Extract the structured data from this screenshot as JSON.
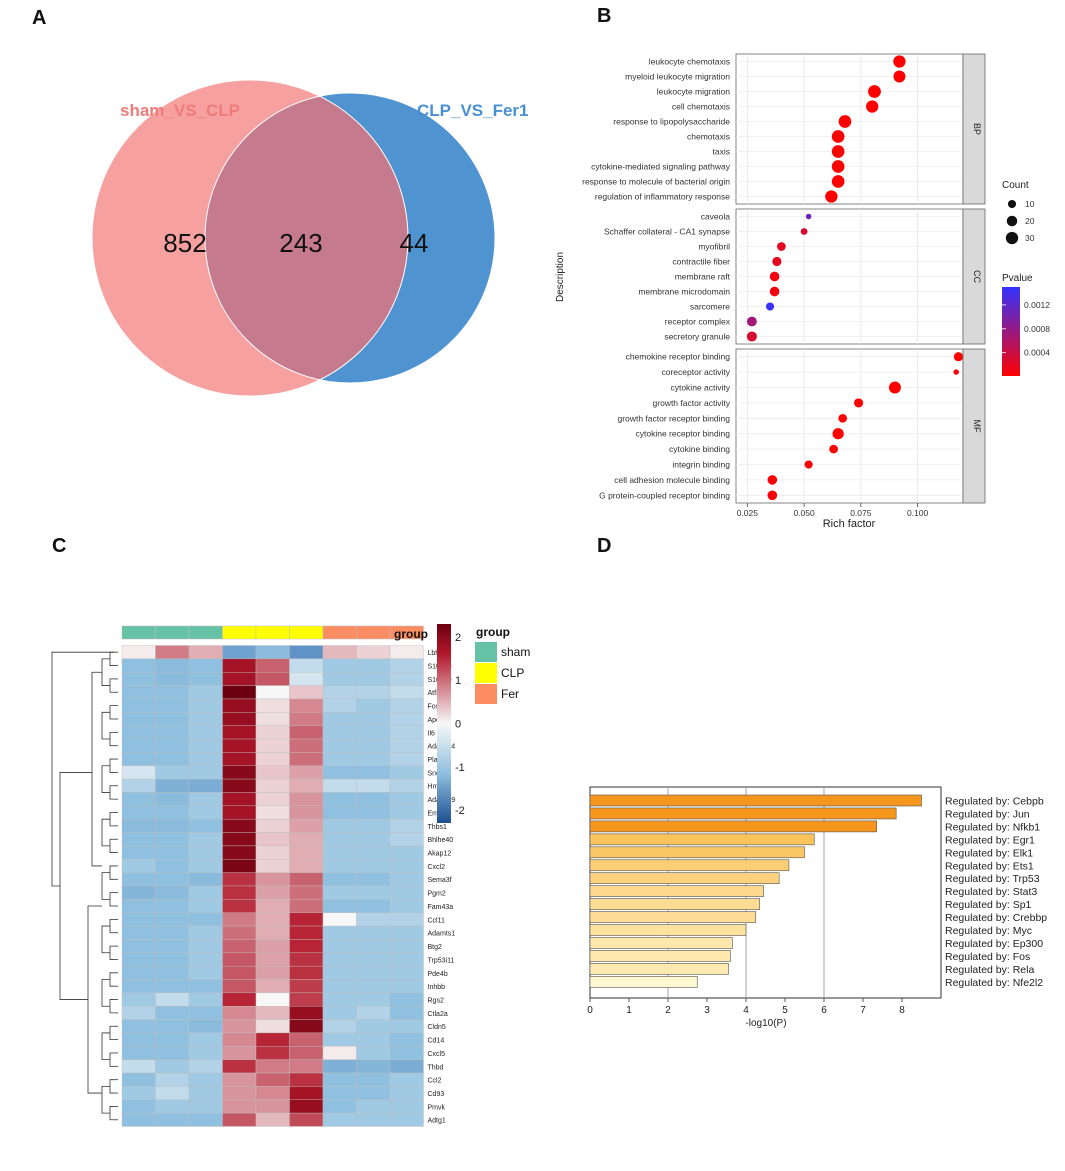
{
  "panels": {
    "a": "A",
    "b": "B",
    "c": "C",
    "d": "D"
  },
  "chart_data": [
    {
      "type": "venn",
      "panel": "A",
      "sets": [
        {
          "name": "sham_VS_CLP",
          "color": "#f08080",
          "fill": "#f7a0a0"
        },
        {
          "name": "CLP_VS_Fer1",
          "color": "#4a90d0",
          "fill": "#4f94d1"
        }
      ],
      "only_left": "852",
      "intersection": "243",
      "only_right": "44"
    },
    {
      "type": "scatter",
      "panel": "B",
      "ylabel": "Description",
      "xlabel": "Rich factor",
      "xlim": [
        0.02,
        0.12
      ],
      "xticks": [
        "0.025",
        "0.050",
        "0.075",
        "0.100"
      ],
      "xtick_values": [
        0.025,
        0.05,
        0.075,
        0.1
      ],
      "facets": [
        {
          "name": "BP",
          "terms": [
            {
              "label": "leukocyte chemotaxis",
              "rich": 0.092,
              "count": 30,
              "p": 1e-05
            },
            {
              "label": "myeloid leukocyte migration",
              "rich": 0.092,
              "count": 28,
              "p": 1e-05
            },
            {
              "label": "leukocyte migration",
              "rich": 0.081,
              "count": 33,
              "p": 1e-05
            },
            {
              "label": "cell chemotaxis",
              "rich": 0.08,
              "count": 30,
              "p": 1e-05
            },
            {
              "label": "response to lipopolysaccharide",
              "rich": 0.068,
              "count": 32,
              "p": 1e-05
            },
            {
              "label": "chemotaxis",
              "rich": 0.065,
              "count": 32,
              "p": 1e-05
            },
            {
              "label": "taxis",
              "rich": 0.065,
              "count": 32,
              "p": 1e-05
            },
            {
              "label": "cytokine-mediated signaling pathway",
              "rich": 0.065,
              "count": 32,
              "p": 1e-05
            },
            {
              "label": "response to molecule of bacterial origin",
              "rich": 0.065,
              "count": 32,
              "p": 1e-05
            },
            {
              "label": "regulation of inflammatory response",
              "rich": 0.062,
              "count": 30,
              "p": 1e-05
            }
          ]
        },
        {
          "name": "CC",
          "terms": [
            {
              "label": "caveola",
              "rich": 0.052,
              "count": 3,
              "p": 0.0011
            },
            {
              "label": "Schaffer collateral - CA1 synapse",
              "rich": 0.05,
              "count": 6,
              "p": 0.0003
            },
            {
              "label": "myofibril",
              "rich": 0.04,
              "count": 12,
              "p": 0.0002
            },
            {
              "label": "contractile fiber",
              "rich": 0.038,
              "count": 14,
              "p": 0.0002
            },
            {
              "label": "membrane raft",
              "rich": 0.037,
              "count": 16,
              "p": 0.0001
            },
            {
              "label": "membrane microdomain",
              "rich": 0.037,
              "count": 16,
              "p": 0.0001
            },
            {
              "label": "sarcomere",
              "rich": 0.035,
              "count": 10,
              "p": 0.00145
            },
            {
              "label": "receptor complex",
              "rich": 0.027,
              "count": 17,
              "p": 0.0007
            },
            {
              "label": "secretory granule",
              "rich": 0.027,
              "count": 18,
              "p": 0.0003
            }
          ]
        },
        {
          "name": "MF",
          "terms": [
            {
              "label": "chemokine receptor binding",
              "rich": 0.118,
              "count": 14,
              "p": 1e-05
            },
            {
              "label": "coreceptor activity",
              "rich": 0.117,
              "count": 3,
              "p": 0.0001
            },
            {
              "label": "cytokine activity",
              "rich": 0.09,
              "count": 28,
              "p": 1e-05
            },
            {
              "label": "growth factor activity",
              "rich": 0.074,
              "count": 14,
              "p": 2e-05
            },
            {
              "label": "growth factor receptor binding",
              "rich": 0.067,
              "count": 12,
              "p": 2e-05
            },
            {
              "label": "cytokine receptor binding",
              "rich": 0.065,
              "count": 24,
              "p": 1e-05
            },
            {
              "label": "cytokine binding",
              "rich": 0.063,
              "count": 12,
              "p": 3e-05
            },
            {
              "label": "integrin binding",
              "rich": 0.052,
              "count": 10,
              "p": 5e-05
            },
            {
              "label": "cell adhesion molecule binding",
              "rich": 0.036,
              "count": 16,
              "p": 5e-05
            },
            {
              "label": "G protein-coupled receptor binding",
              "rich": 0.036,
              "count": 16,
              "p": 5e-05
            }
          ]
        }
      ],
      "size_legend": {
        "title": "Count",
        "values": [
          10,
          20,
          30
        ],
        "labels": [
          "10",
          "20",
          "30"
        ]
      },
      "color_legend": {
        "title": "Pvalue",
        "min": 1e-05,
        "max": 0.0015,
        "ticks": [
          0.0012,
          0.0008,
          0.0004
        ],
        "tick_labels": [
          "0.0012",
          "0.0008",
          "0.0004"
        ],
        "low_color": "#ff0000",
        "high_color": "#3333ff"
      }
    },
    {
      "type": "heatmap",
      "panel": "C",
      "columns": [
        "sham",
        "sham",
        "sham",
        "CLP",
        "CLP",
        "CLP",
        "Fer",
        "Fer",
        "Fer"
      ],
      "group_annotation_label": "group",
      "group_legend": {
        "title": "group",
        "entries": [
          {
            "name": "sham",
            "color": "#66c2a5"
          },
          {
            "name": "CLP",
            "color": "#ffff00"
          },
          {
            "name": "Fer",
            "color": "#fc8d62"
          }
        ]
      },
      "colorbar": {
        "min": -2.3,
        "max": 2.3,
        "ticks": [
          2,
          1,
          0,
          -1,
          -2
        ],
        "tick_labels": [
          "2",
          "1",
          "0",
          "-1",
          "-2"
        ]
      },
      "rows": [
        {
          "gene": "Lbh",
          "z": [
            0.1,
            1.0,
            0.6,
            -1.2,
            -0.7,
            -1.5,
            0.5,
            0.3,
            0.1
          ]
        },
        {
          "gene": "S100a8",
          "z": [
            -0.6,
            -0.7,
            -0.6,
            1.9,
            1.2,
            -0.3,
            -0.5,
            -0.5,
            -0.4
          ]
        },
        {
          "gene": "S100a9",
          "z": [
            -0.6,
            -0.7,
            -0.6,
            1.9,
            1.3,
            -0.2,
            -0.5,
            -0.5,
            -0.4
          ]
        },
        {
          "gene": "Atf3",
          "z": [
            -0.6,
            -0.6,
            -0.5,
            2.3,
            0.0,
            0.4,
            -0.4,
            -0.4,
            -0.3
          ]
        },
        {
          "gene": "Fos",
          "z": [
            -0.6,
            -0.6,
            -0.5,
            2.0,
            0.2,
            0.9,
            -0.4,
            -0.5,
            -0.4
          ]
        },
        {
          "gene": "Apold1",
          "z": [
            -0.6,
            -0.6,
            -0.5,
            2.0,
            0.2,
            1.0,
            -0.5,
            -0.5,
            -0.4
          ]
        },
        {
          "gene": "Il6",
          "z": [
            -0.6,
            -0.6,
            -0.5,
            1.9,
            0.3,
            1.2,
            -0.5,
            -0.5,
            -0.4
          ]
        },
        {
          "gene": "Adamts4",
          "z": [
            -0.6,
            -0.6,
            -0.5,
            1.9,
            0.3,
            1.1,
            -0.5,
            -0.5,
            -0.4
          ]
        },
        {
          "gene": "Plaur",
          "z": [
            -0.6,
            -0.6,
            -0.5,
            1.9,
            0.3,
            1.1,
            -0.5,
            -0.5,
            -0.4
          ]
        },
        {
          "gene": "Srxn1",
          "z": [
            -0.2,
            -0.5,
            -0.5,
            2.1,
            0.4,
            0.7,
            -0.6,
            -0.6,
            -0.5
          ]
        },
        {
          "gene": "Hmox1",
          "z": [
            -0.4,
            -0.9,
            -1.0,
            2.1,
            0.3,
            0.6,
            -0.3,
            -0.3,
            -0.4
          ]
        },
        {
          "gene": "Adamts9",
          "z": [
            -0.6,
            -0.7,
            -0.5,
            1.9,
            0.3,
            0.8,
            -0.6,
            -0.6,
            -0.5
          ]
        },
        {
          "gene": "Emp1",
          "z": [
            -0.6,
            -0.6,
            -0.5,
            1.9,
            0.2,
            0.8,
            -0.6,
            -0.6,
            -0.5
          ]
        },
        {
          "gene": "Thbs1",
          "z": [
            -0.7,
            -0.7,
            -0.6,
            2.1,
            0.3,
            0.7,
            -0.5,
            -0.5,
            -0.4
          ]
        },
        {
          "gene": "Bhlhe40",
          "z": [
            -0.6,
            -0.6,
            -0.5,
            2.1,
            0.4,
            0.6,
            -0.5,
            -0.5,
            -0.4
          ]
        },
        {
          "gene": "Akap12",
          "z": [
            -0.6,
            -0.6,
            -0.5,
            2.1,
            0.3,
            0.6,
            -0.5,
            -0.5,
            -0.5
          ]
        },
        {
          "gene": "Cxcl2",
          "z": [
            -0.5,
            -0.6,
            -0.5,
            2.2,
            0.3,
            0.6,
            -0.5,
            -0.5,
            -0.5
          ]
        },
        {
          "gene": "Sema3f",
          "z": [
            -0.6,
            -0.6,
            -0.7,
            1.6,
            0.8,
            1.2,
            -0.6,
            -0.6,
            -0.5
          ]
        },
        {
          "gene": "Pgm2",
          "z": [
            -0.8,
            -0.7,
            -0.5,
            1.6,
            0.7,
            1.1,
            -0.5,
            -0.5,
            -0.5
          ]
        },
        {
          "gene": "Fam43a",
          "z": [
            -0.6,
            -0.6,
            -0.5,
            1.6,
            0.6,
            1.1,
            -0.6,
            -0.6,
            -0.5
          ]
        },
        {
          "gene": "Ccl11",
          "z": [
            -0.6,
            -0.6,
            -0.6,
            1.0,
            0.6,
            1.7,
            0.0,
            -0.4,
            -0.4
          ]
        },
        {
          "gene": "Adamts1",
          "z": [
            -0.6,
            -0.6,
            -0.5,
            1.1,
            0.6,
            1.7,
            -0.5,
            -0.5,
            -0.5
          ]
        },
        {
          "gene": "Btg2",
          "z": [
            -0.6,
            -0.6,
            -0.5,
            1.2,
            0.7,
            1.7,
            -0.5,
            -0.5,
            -0.5
          ]
        },
        {
          "gene": "Trp53i11",
          "z": [
            -0.6,
            -0.6,
            -0.5,
            1.3,
            0.7,
            1.6,
            -0.5,
            -0.5,
            -0.5
          ]
        },
        {
          "gene": "Pde4b",
          "z": [
            -0.6,
            -0.6,
            -0.5,
            1.3,
            0.7,
            1.6,
            -0.5,
            -0.5,
            -0.5
          ]
        },
        {
          "gene": "Inhbb",
          "z": [
            -0.6,
            -0.6,
            -0.6,
            1.3,
            0.6,
            1.5,
            -0.5,
            -0.5,
            -0.5
          ]
        },
        {
          "gene": "Rgs2",
          "z": [
            -0.5,
            -0.3,
            -0.5,
            1.7,
            0.0,
            1.5,
            -0.5,
            -0.5,
            -0.6
          ]
        },
        {
          "gene": "Ctla2a",
          "z": [
            -0.4,
            -0.6,
            -0.6,
            0.9,
            0.5,
            2.0,
            -0.5,
            -0.4,
            -0.6
          ]
        },
        {
          "gene": "Cldn5",
          "z": [
            -0.6,
            -0.6,
            -0.7,
            0.8,
            0.2,
            2.1,
            -0.4,
            -0.5,
            -0.5
          ]
        },
        {
          "gene": "Cd14",
          "z": [
            -0.6,
            -0.6,
            -0.5,
            0.9,
            1.7,
            1.2,
            -0.5,
            -0.5,
            -0.6
          ]
        },
        {
          "gene": "Cxcl5",
          "z": [
            -0.6,
            -0.6,
            -0.5,
            0.8,
            1.6,
            1.2,
            0.1,
            -0.5,
            -0.6
          ]
        },
        {
          "gene": "Thbd",
          "z": [
            -0.3,
            -0.5,
            -0.4,
            1.6,
            1.0,
            1.0,
            -0.9,
            -0.8,
            -1.0
          ]
        },
        {
          "gene": "Ccl2",
          "z": [
            -0.6,
            -0.4,
            -0.5,
            0.8,
            1.2,
            1.6,
            -0.6,
            -0.6,
            -0.5
          ]
        },
        {
          "gene": "Cd93",
          "z": [
            -0.5,
            -0.3,
            -0.5,
            0.8,
            0.9,
            1.9,
            -0.6,
            -0.6,
            -0.5
          ]
        },
        {
          "gene": "Pmvk",
          "z": [
            -0.6,
            -0.5,
            -0.5,
            0.8,
            0.8,
            2.0,
            -0.6,
            -0.5,
            -0.5
          ]
        },
        {
          "gene": "Adtg1",
          "z": [
            -0.6,
            -0.6,
            -0.6,
            1.3,
            0.5,
            1.4,
            -0.5,
            -0.5,
            -0.5
          ]
        }
      ]
    },
    {
      "type": "bar",
      "panel": "D",
      "orientation": "horizontal",
      "xlabel": "-log10(P)",
      "xlim": [
        0,
        9
      ],
      "xticks": [
        "0",
        "1",
        "2",
        "3",
        "4",
        "5",
        "6",
        "7",
        "8"
      ],
      "categories": [
        "Regulated by: Cebpb",
        "Regulated by: Jun",
        "Regulated by: Nfkb1",
        "Regulated by: Egr1",
        "Regulated by: Elk1",
        "Regulated by: Ets1",
        "Regulated by: Trp53",
        "Regulated by: Stat3",
        "Regulated by: Sp1",
        "Regulated by: Crebbp",
        "Regulated by: Myc",
        "Regulated by: Ep300",
        "Regulated by: Fos",
        "Regulated by: Rela",
        "Regulated by: Nfe2l2"
      ],
      "values": [
        8.5,
        7.85,
        7.35,
        5.75,
        5.5,
        5.1,
        4.85,
        4.45,
        4.35,
        4.25,
        4.0,
        3.65,
        3.6,
        3.55,
        2.75
      ]
    }
  ]
}
